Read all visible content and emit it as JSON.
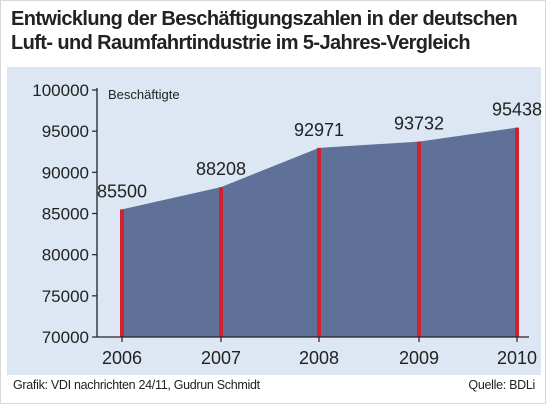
{
  "title": {
    "line1": "Entwicklung der Beschäftigungszahlen in der deutschen",
    "line2": "Luft- und Raumfahrtindustrie im 5-Jahres-Vergleich"
  },
  "footer": {
    "source_left": "Grafik: VDI nachrichten 24/11, Gudrun Schmidt",
    "source_right": "Quelle: BDLi"
  },
  "colors": {
    "panel_background": "#dce7f3",
    "area_fill": "#5f7199",
    "bar_color": "#d2202f"
  },
  "chart_data": {
    "type": "area",
    "ylabel": "Beschäftigte",
    "xlabel": "",
    "categories": [
      "2006",
      "2007",
      "2008",
      "2009",
      "2010"
    ],
    "values": [
      85500,
      88208,
      92971,
      93732,
      95438
    ],
    "value_labels": [
      "85500",
      "88208",
      "92971",
      "93732",
      "95438"
    ],
    "ylim": [
      70000,
      100000
    ],
    "yticks": [
      "100000",
      "95000",
      "90000",
      "85000",
      "80000",
      "75000",
      "70000"
    ],
    "ytick_values": [
      100000,
      95000,
      90000,
      85000,
      80000,
      75000,
      70000
    ],
    "grid": false,
    "legend": "none"
  }
}
